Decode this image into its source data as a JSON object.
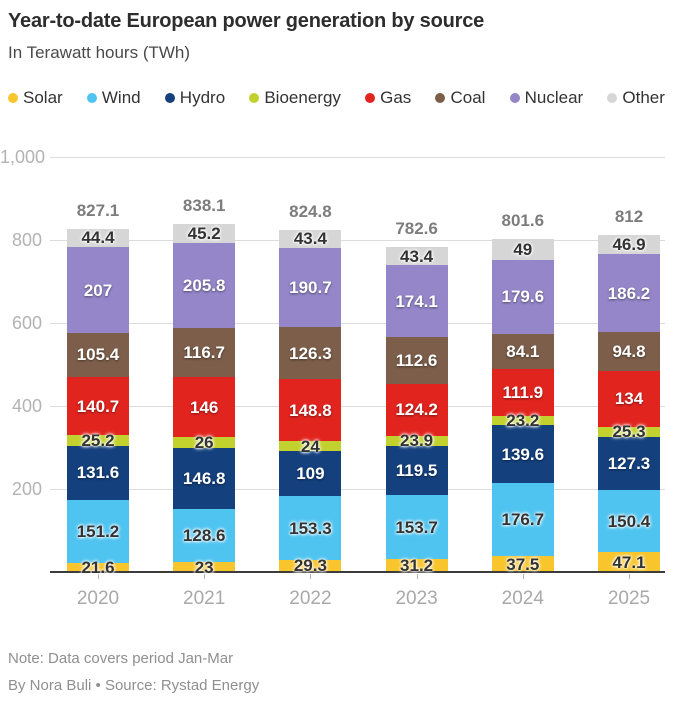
{
  "header": {
    "title": "Year-to-date European power generation by source",
    "subtitle": "In Terawatt hours (TWh)"
  },
  "chart_data": {
    "type": "bar",
    "stacked": true,
    "title": "Year-to-date European power generation by source",
    "units": "Terawatt hours (TWh)",
    "xlabel": "",
    "ylabel": "",
    "ylim": [
      0,
      1000
    ],
    "grid": "horizontal",
    "legend_position": "top",
    "categories": [
      "2020",
      "2021",
      "2022",
      "2023",
      "2024",
      "2025"
    ],
    "y_ticks": [
      200,
      400,
      600,
      800,
      1000
    ],
    "y_tick_labels": [
      "200",
      "400",
      "600",
      "800",
      "1,000"
    ],
    "series": [
      {
        "name": "Solar",
        "color": "#f8c52c",
        "label_style": "dark",
        "values": [
          21.6,
          23,
          29.3,
          31.2,
          37.5,
          47.1
        ]
      },
      {
        "name": "Wind",
        "color": "#4fc4f0",
        "label_style": "dark",
        "values": [
          151.2,
          128.6,
          153.3,
          153.7,
          176.7,
          150.4
        ]
      },
      {
        "name": "Hydro",
        "color": "#14407d",
        "label_style": "light",
        "values": [
          131.6,
          146.8,
          109,
          119.5,
          139.6,
          127.3
        ]
      },
      {
        "name": "Bioenergy",
        "color": "#c2d12e",
        "label_style": "dark",
        "values": [
          25.2,
          26,
          24,
          23.9,
          23.2,
          25.3
        ]
      },
      {
        "name": "Gas",
        "color": "#e2241f",
        "label_style": "light",
        "values": [
          140.7,
          146,
          148.8,
          124.2,
          111.9,
          134
        ]
      },
      {
        "name": "Coal",
        "color": "#7c5e4a",
        "label_style": "light",
        "values": [
          105.4,
          116.7,
          126.3,
          112.6,
          84.1,
          94.8
        ]
      },
      {
        "name": "Nuclear",
        "color": "#9486c8",
        "label_style": "light",
        "values": [
          207,
          205.8,
          190.7,
          174.1,
          179.6,
          186.2
        ]
      },
      {
        "name": "Other",
        "color": "#d6d6d6",
        "label_style": "dark",
        "values": [
          44.4,
          45.2,
          43.4,
          43.4,
          49,
          46.9
        ]
      }
    ],
    "totals": [
      "827.1",
      "838.1",
      "824.8",
      "782.6",
      "801.6",
      "812"
    ]
  },
  "footer": {
    "note": "Note: Data covers period Jan-Mar",
    "byline": "By Nora Buli • Source: Rystad Energy"
  },
  "colors": {
    "gridline": "#dcdcdc",
    "baseline": "#3c3c3c",
    "axis_text": "#b3b3b3",
    "total_text": "#7d7d7d",
    "year_text": "#a9a9a9"
  }
}
